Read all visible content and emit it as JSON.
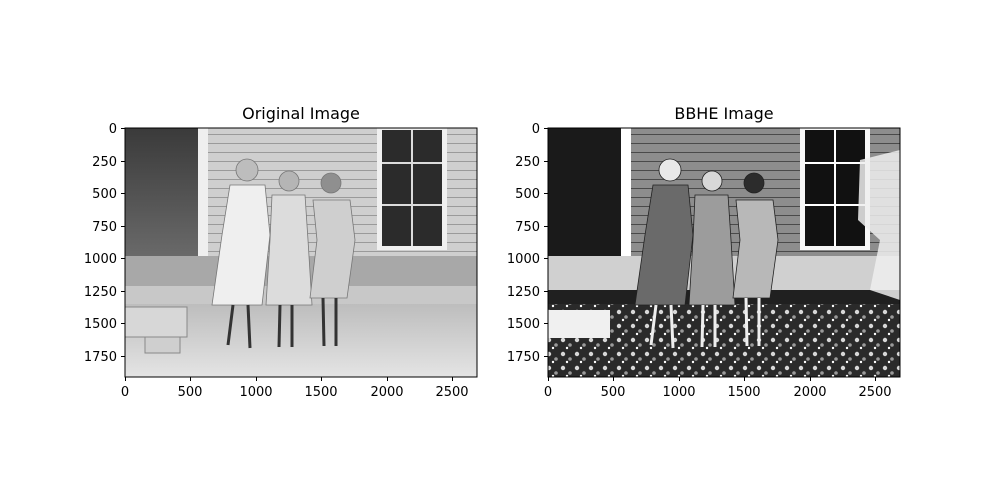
{
  "figure": {
    "panels": [
      {
        "title": "Original Image",
        "image_content": "grayscale photograph of three girls standing in front of a wooden house with a porch and window",
        "x_ticks": [
          "0",
          "500",
          "1000",
          "1500",
          "2000",
          "2500"
        ],
        "y_ticks": [
          "0",
          "250",
          "500",
          "750",
          "1000",
          "1250",
          "1500",
          "1750"
        ]
      },
      {
        "title": "BBHE Image",
        "image_content": "histogram-equalized version of the same photograph with strong contrast artifacts",
        "x_ticks": [
          "0",
          "500",
          "1000",
          "1500",
          "2000",
          "2500"
        ],
        "y_ticks": [
          "0",
          "250",
          "500",
          "750",
          "1000",
          "1250",
          "1500",
          "1750"
        ]
      }
    ],
    "colors": {
      "axes": "#000000",
      "background": "#ffffff"
    }
  }
}
